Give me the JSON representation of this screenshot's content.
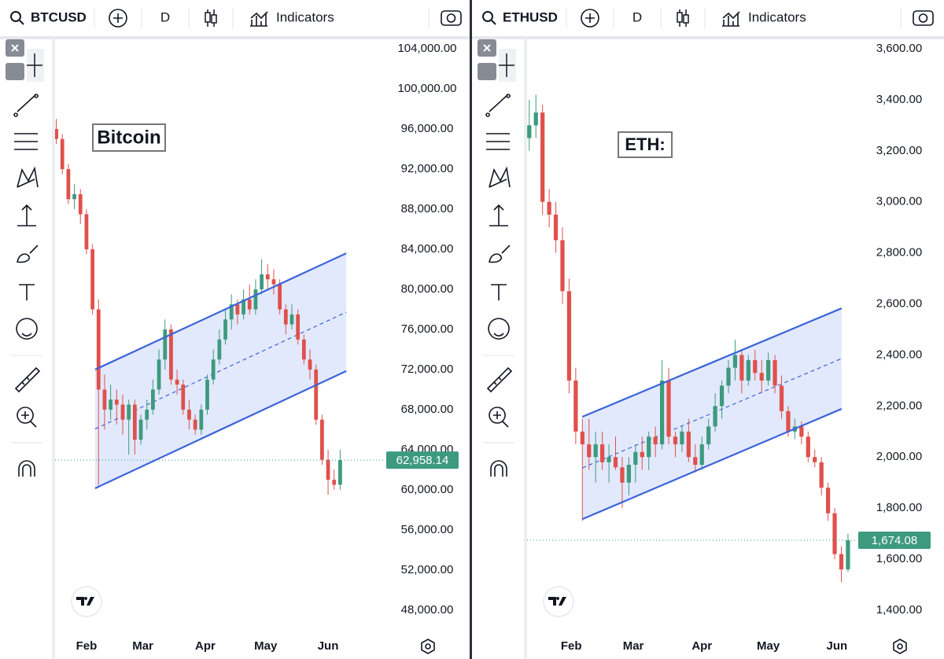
{
  "panels": [
    {
      "symbol": "BTCUSD",
      "interval": "D",
      "indicators": "Indicators",
      "chart_data": {
        "type": "candlestick",
        "annotation": "Bitcoin",
        "up_color": "#3d9a7e",
        "down_color": "#e0504c",
        "channel_color": "#3b64d9",
        "channel_fill": "#dde5fb",
        "xlim": [
          -0.2,
          54.5
        ],
        "xticks": [
          {
            "value": 5,
            "label": "Feb"
          },
          {
            "value": 14.33,
            "label": "Mar"
          },
          {
            "value": 24.67,
            "label": "Apr"
          },
          {
            "value": 34.67,
            "label": "May"
          },
          {
            "value": 45,
            "label": "Jun"
          }
        ],
        "ylim": [
          46100,
          104950
        ],
        "yticks": [
          {
            "value": 48000,
            "label": "48,000.00"
          },
          {
            "value": 52000,
            "label": "52,000.00"
          },
          {
            "value": 56000,
            "label": "56,000.00"
          },
          {
            "value": 60000,
            "label": "60,000.00"
          },
          {
            "value": 64000,
            "label": "64,000.00"
          },
          {
            "value": 68000,
            "label": "68,000.00"
          },
          {
            "value": 72000,
            "label": "72,000.00"
          },
          {
            "value": 76000,
            "label": "76,000.00"
          },
          {
            "value": 80000,
            "label": "80,000.00"
          },
          {
            "value": 84000,
            "label": "84,000.00"
          },
          {
            "value": 88000,
            "label": "88,000.00"
          },
          {
            "value": 92000,
            "label": "92,000.00"
          },
          {
            "value": 96000,
            "label": "96,000.00"
          },
          {
            "value": 100000,
            "label": "100,000.00"
          },
          {
            "value": 104000,
            "label": "104,000.00"
          }
        ],
        "last_price": {
          "value": 62958.14,
          "label": "62,958.14"
        },
        "channel": {
          "x": [
            6.43,
            48
          ],
          "lower": [
            60150,
            71850
          ],
          "upper": [
            72000,
            83600
          ]
        },
        "ohlc": [
          [
            96000,
            97000,
            94500,
            95000
          ],
          [
            95000,
            95500,
            91500,
            92000
          ],
          [
            92000,
            92500,
            88500,
            89000
          ],
          [
            89000,
            90500,
            88000,
            89500
          ],
          [
            89500,
            90000,
            86500,
            87500
          ],
          [
            87500,
            88000,
            83500,
            84000
          ],
          [
            84000,
            84500,
            77500,
            78000
          ],
          [
            78000,
            79000,
            60500,
            70000
          ],
          [
            70000,
            71500,
            66000,
            68000
          ],
          [
            68000,
            70500,
            67000,
            69000
          ],
          [
            69000,
            70000,
            66500,
            68500
          ],
          [
            68500,
            69500,
            65500,
            67000
          ],
          [
            67000,
            69000,
            63500,
            68500
          ],
          [
            68500,
            69000,
            63500,
            65000
          ],
          [
            65000,
            67500,
            64500,
            67000
          ],
          [
            67000,
            69000,
            66000,
            68000
          ],
          [
            68000,
            71000,
            67500,
            70000
          ],
          [
            70000,
            74000,
            69500,
            73000
          ],
          [
            73000,
            77000,
            72000,
            76000
          ],
          [
            76000,
            76500,
            70500,
            71000
          ],
          [
            71000,
            72000,
            69500,
            70500
          ],
          [
            70500,
            71000,
            67500,
            68000
          ],
          [
            68000,
            69000,
            66000,
            67000
          ],
          [
            67000,
            67500,
            65500,
            66000
          ],
          [
            66000,
            68500,
            65500,
            68000
          ],
          [
            68000,
            71500,
            67500,
            71000
          ],
          [
            71000,
            74000,
            70500,
            73000
          ],
          [
            73000,
            76000,
            72500,
            75000
          ],
          [
            75000,
            78000,
            74500,
            77000
          ],
          [
            77000,
            79500,
            76000,
            78500
          ],
          [
            78500,
            79000,
            76500,
            77500
          ],
          [
            77500,
            80000,
            77000,
            79000
          ],
          [
            79000,
            80500,
            77500,
            78000
          ],
          [
            78000,
            81000,
            77500,
            80000
          ],
          [
            80000,
            83000,
            79500,
            81500
          ],
          [
            81500,
            82500,
            80000,
            81000
          ],
          [
            81000,
            82000,
            79500,
            80500
          ],
          [
            80500,
            81000,
            77500,
            78000
          ],
          [
            78000,
            78500,
            75500,
            76500
          ],
          [
            76500,
            78500,
            76000,
            77500
          ],
          [
            77500,
            78000,
            74500,
            75000
          ],
          [
            75000,
            75500,
            72500,
            73000
          ],
          [
            73000,
            74000,
            71000,
            72000
          ],
          [
            72000,
            72500,
            66500,
            67000
          ],
          [
            67000,
            67500,
            62500,
            63000
          ],
          [
            63000,
            64000,
            59500,
            61000
          ],
          [
            61000,
            62000,
            60000,
            60500
          ],
          [
            60500,
            64000,
            60000,
            62958.14
          ]
        ]
      }
    },
    {
      "symbol": "ETHUSD",
      "interval": "D",
      "indicators": "Indicators",
      "chart_data": {
        "type": "candlestick",
        "annotation": "ETH:",
        "up_color": "#3d9a7e",
        "down_color": "#e0504c",
        "channel_color": "#3b64d9",
        "channel_fill": "#dde5fb",
        "xlim": [
          -0.33,
          49.43
        ],
        "xticks": [
          {
            "value": 6.33,
            "label": "Feb"
          },
          {
            "value": 15.67,
            "label": "Mar"
          },
          {
            "value": 26,
            "label": "Apr"
          },
          {
            "value": 36,
            "label": "May"
          },
          {
            "value": 46.33,
            "label": "Jun"
          }
        ],
        "ylim": [
          1326,
          3637
        ],
        "yticks": [
          {
            "value": 1400,
            "label": "1,400.00"
          },
          {
            "value": 1600,
            "label": "1,600.00"
          },
          {
            "value": 1800,
            "label": "1,800.00"
          },
          {
            "value": 2000,
            "label": "2,000.00"
          },
          {
            "value": 2200,
            "label": "2,200.00"
          },
          {
            "value": 2400,
            "label": "2,400.00"
          },
          {
            "value": 2600,
            "label": "2,600.00"
          },
          {
            "value": 2800,
            "label": "2,800.00"
          },
          {
            "value": 3000,
            "label": "3,000.00"
          },
          {
            "value": 3200,
            "label": "3,200.00"
          },
          {
            "value": 3400,
            "label": "3,400.00"
          },
          {
            "value": 3600,
            "label": "3,600.00"
          }
        ],
        "last_price": {
          "value": 1674.08,
          "label": "1,674.08"
        },
        "channel": {
          "x": [
            8,
            47.04
          ],
          "lower": [
            1757,
            2189
          ],
          "upper": [
            2158,
            2583
          ]
        },
        "ohlc": [
          [
            3250,
            3400,
            3200,
            3300
          ],
          [
            3300,
            3420,
            3250,
            3350
          ],
          [
            3350,
            3380,
            2950,
            3000
          ],
          [
            3000,
            3050,
            2900,
            2950
          ],
          [
            2950,
            3000,
            2800,
            2850
          ],
          [
            2850,
            2900,
            2600,
            2650
          ],
          [
            2650,
            2700,
            2250,
            2300
          ],
          [
            2300,
            2350,
            2050,
            2100
          ],
          [
            2100,
            2150,
            1750,
            2050
          ],
          [
            2050,
            2150,
            1950,
            2000
          ],
          [
            2000,
            2100,
            1900,
            2050
          ],
          [
            2050,
            2100,
            1950,
            1980
          ],
          [
            1980,
            2050,
            1900,
            2000
          ],
          [
            2000,
            2080,
            1950,
            1960
          ],
          [
            1960,
            2000,
            1800,
            1900
          ],
          [
            1900,
            2000,
            1850,
            1970
          ],
          [
            1970,
            2050,
            1900,
            2020
          ],
          [
            2020,
            2080,
            1950,
            2000
          ],
          [
            2000,
            2100,
            1950,
            2080
          ],
          [
            2080,
            2120,
            2000,
            2050
          ],
          [
            2050,
            2380,
            2030,
            2300
          ],
          [
            2300,
            2350,
            2050,
            2080
          ],
          [
            2080,
            2100,
            2000,
            2050
          ],
          [
            2050,
            2120,
            2020,
            2100
          ],
          [
            2100,
            2150,
            1980,
            2000
          ],
          [
            2000,
            2050,
            1940,
            1970
          ],
          [
            1970,
            2080,
            1950,
            2050
          ],
          [
            2050,
            2150,
            2030,
            2120
          ],
          [
            2120,
            2250,
            2100,
            2200
          ],
          [
            2200,
            2300,
            2150,
            2280
          ],
          [
            2280,
            2380,
            2250,
            2350
          ],
          [
            2350,
            2460,
            2300,
            2400
          ],
          [
            2400,
            2420,
            2250,
            2300
          ],
          [
            2300,
            2400,
            2280,
            2380
          ],
          [
            2380,
            2420,
            2300,
            2330
          ],
          [
            2330,
            2380,
            2250,
            2300
          ],
          [
            2300,
            2410,
            2280,
            2380
          ],
          [
            2380,
            2400,
            2250,
            2280
          ],
          [
            2280,
            2320,
            2150,
            2180
          ],
          [
            2180,
            2200,
            2080,
            2100
          ],
          [
            2100,
            2150,
            2070,
            2120
          ],
          [
            2120,
            2140,
            2050,
            2080
          ],
          [
            2080,
            2100,
            1980,
            2000
          ],
          [
            2000,
            2030,
            1960,
            1980
          ],
          [
            1980,
            2000,
            1850,
            1880
          ],
          [
            1880,
            1900,
            1750,
            1780
          ],
          [
            1780,
            1800,
            1600,
            1620
          ],
          [
            1620,
            1650,
            1510,
            1560
          ],
          [
            1560,
            1700,
            1550,
            1674.08
          ]
        ]
      }
    }
  ]
}
